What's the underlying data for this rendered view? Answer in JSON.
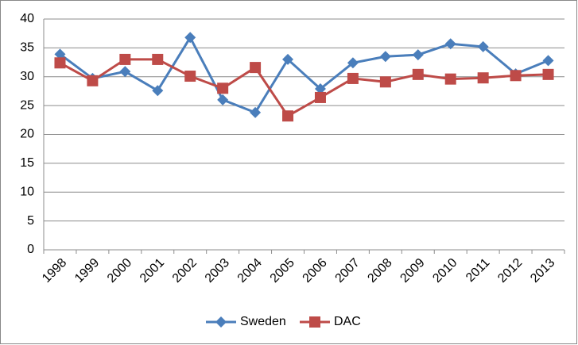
{
  "chart_data": {
    "type": "line",
    "categories": [
      "1998",
      "1999",
      "2000",
      "2001",
      "2002",
      "2003",
      "2004",
      "2005",
      "2006",
      "2007",
      "2008",
      "2009",
      "2010",
      "2011",
      "2012",
      "2013"
    ],
    "series": [
      {
        "name": "Sweden",
        "color": "#4a7ebb",
        "marker": "diamond",
        "values": [
          33.9,
          29.7,
          30.9,
          27.6,
          36.8,
          26.0,
          23.8,
          33.0,
          27.9,
          32.4,
          33.5,
          33.8,
          35.7,
          35.2,
          30.5,
          32.8
        ]
      },
      {
        "name": "DAC",
        "color": "#be4b48",
        "marker": "square",
        "values": [
          32.4,
          29.3,
          33.0,
          33.0,
          30.1,
          28.0,
          31.6,
          23.2,
          26.4,
          29.7,
          29.1,
          30.4,
          29.6,
          29.8,
          30.2,
          30.4
        ]
      }
    ],
    "ylim": [
      0,
      40
    ],
    "yticks": [
      0,
      5,
      10,
      15,
      20,
      25,
      30,
      35,
      40
    ],
    "grid": true,
    "legend": "bottom"
  }
}
